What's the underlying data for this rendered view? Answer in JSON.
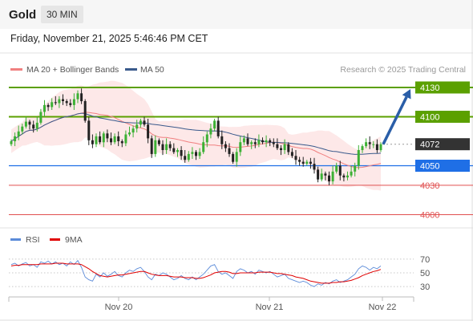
{
  "header": {
    "symbol": "Gold",
    "timeframe": "30 MIN",
    "datetime": "Friday, November 21, 2025 5:46:46 PM CET"
  },
  "legend": {
    "ma20_label": "MA 20 + Bollinger Bands",
    "ma50_label": "MA 50",
    "credit": "Research © 2025 Trading Central",
    "colors": {
      "ma20": "#f08080",
      "ma50": "#3a5a8c"
    }
  },
  "rsi_legend": {
    "rsi_label": "RSI",
    "ma_label": "9MA",
    "colors": {
      "rsi": "#5b8bd9",
      "ma": "#e00000"
    }
  },
  "chart_data": {
    "type": "candlestick",
    "price_ylim": [
      3993,
      4139
    ],
    "x_ticks": [
      "Nov 20",
      "Nov 21",
      "Nov 22"
    ],
    "levels": [
      {
        "label": "4130",
        "value": 4130,
        "color": "#5ba000",
        "style": "green"
      },
      {
        "label": "4100",
        "value": 4100,
        "color": "#5ba000",
        "style": "green"
      },
      {
        "label": "4072",
        "value": 4072,
        "color": "#333333",
        "style": "current"
      },
      {
        "label": "4050",
        "value": 4050,
        "color": "#1f6fe6",
        "style": "blue"
      },
      {
        "label": "4030",
        "value": 4030,
        "color": "#e05050",
        "style": "red"
      },
      {
        "label": "4000",
        "value": 4000,
        "color": "#e05050",
        "style": "red"
      }
    ],
    "forecast_arrow": {
      "from": 4072,
      "to": 4130
    },
    "closes": [
      4075,
      4080,
      4085,
      4090,
      4095,
      4092,
      4088,
      4094,
      4105,
      4112,
      4110,
      4115,
      4114,
      4118,
      4116,
      4114,
      4112,
      4118,
      4124,
      4116,
      4096,
      4076,
      4072,
      4080,
      4074,
      4083,
      4078,
      4074,
      4080,
      4075,
      4073,
      4082,
      4084,
      4088,
      4092,
      4096,
      4092,
      4078,
      4062,
      4076,
      4072,
      4066,
      4072,
      4068,
      4064,
      4066,
      4060,
      4056,
      4062,
      4064,
      4060,
      4064,
      4074,
      4082,
      4088,
      4096,
      4080,
      4072,
      4068,
      4062,
      4054,
      4064,
      4074,
      4078,
      4072,
      4074,
      4072,
      4076,
      4074,
      4076,
      4074,
      4072,
      4068,
      4066,
      4072,
      4064,
      4060,
      4056,
      4054,
      4052,
      4054,
      4052,
      4046,
      4036,
      4042,
      4040,
      4034,
      4044,
      4050,
      4040,
      4038,
      4040,
      4044,
      4050,
      4066,
      4070,
      4074,
      4072,
      4072,
      4066,
      4072
    ],
    "rsi": {
      "ticks": [
        70,
        50,
        30
      ],
      "ylim": [
        22,
        78
      ],
      "values": [
        62,
        64,
        60,
        63,
        65,
        60,
        62,
        58,
        66,
        64,
        67,
        63,
        66,
        62,
        64,
        60,
        66,
        62,
        68,
        58,
        44,
        40,
        38,
        48,
        44,
        50,
        45,
        48,
        52,
        46,
        44,
        50,
        54,
        52,
        56,
        58,
        52,
        44,
        40,
        48,
        46,
        50,
        48,
        44,
        40,
        42,
        46,
        42,
        40,
        44,
        40,
        44,
        48,
        54,
        60,
        62,
        52,
        48,
        50,
        46,
        42,
        52,
        56,
        54,
        50,
        52,
        48,
        54,
        52,
        50,
        52,
        48,
        44,
        46,
        48,
        42,
        40,
        38,
        36,
        38,
        36,
        32,
        30,
        34,
        32,
        36,
        34,
        38,
        40,
        36,
        38,
        40,
        44,
        48,
        56,
        60,
        58,
        54,
        58,
        56,
        60
      ],
      "ma": [
        60,
        61,
        61,
        62,
        62,
        62,
        62,
        62,
        63,
        63,
        63,
        63,
        64,
        64,
        64,
        63,
        63,
        63,
        63,
        62,
        59,
        56,
        52,
        49,
        46,
        45,
        44,
        45,
        46,
        47,
        47,
        48,
        49,
        50,
        51,
        52,
        52,
        50,
        48,
        47,
        46,
        46,
        46,
        45,
        44,
        44,
        44,
        43,
        43,
        43,
        42,
        42,
        43,
        45,
        47,
        50,
        51,
        52,
        52,
        51,
        49,
        49,
        50,
        50,
        50,
        50,
        50,
        51,
        51,
        51,
        51,
        50,
        49,
        49,
        48,
        47,
        46,
        44,
        43,
        42,
        40,
        38,
        37,
        36,
        35,
        35,
        35,
        36,
        36,
        37,
        37,
        38,
        39,
        41,
        43,
        46,
        48,
        50,
        52,
        53,
        55
      ]
    }
  }
}
